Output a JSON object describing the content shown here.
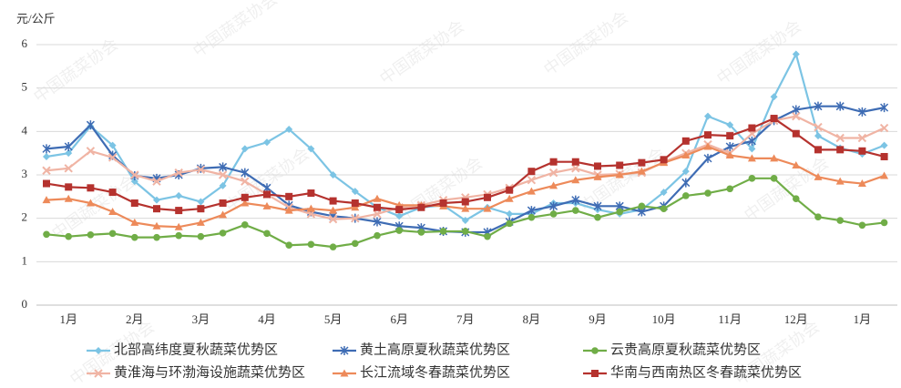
{
  "chart_data": {
    "type": "line",
    "y_label": "元/公斤",
    "watermark": "中国蔬菜协会",
    "categories": [
      null,
      "1月",
      null,
      null,
      "2月",
      null,
      null,
      "3月",
      null,
      null,
      "4月",
      null,
      null,
      "5月",
      null,
      null,
      "6月",
      null,
      null,
      "7月",
      null,
      null,
      "8月",
      null,
      null,
      "9月",
      null,
      null,
      "10月",
      null,
      null,
      "11月",
      null,
      null,
      "12月",
      null,
      null,
      "1月",
      null
    ],
    "ylim": [
      0,
      6
    ],
    "yticks": [
      0,
      1,
      2,
      3,
      4,
      5,
      6
    ],
    "grid": true,
    "legend": "bottom",
    "series": [
      {
        "name": "北部高纬度夏秋蔬菜优势区",
        "color": "#7cc4e4",
        "marker": "diamond",
        "values": [
          3.42,
          3.5,
          4.12,
          3.68,
          2.85,
          2.42,
          2.52,
          2.38,
          2.75,
          3.6,
          3.75,
          4.05,
          3.6,
          3.0,
          2.62,
          2.25,
          2.05,
          2.25,
          2.3,
          1.95,
          2.25,
          2.1,
          2.1,
          2.35,
          2.35,
          2.2,
          2.1,
          2.2,
          2.6,
          3.08,
          4.35,
          4.15,
          3.6,
          4.8,
          5.78,
          3.9,
          3.62,
          3.48,
          3.68
        ]
      },
      {
        "name": "黄土高原夏秋蔬菜优势区",
        "color": "#3e6cb4",
        "marker": "star",
        "values": [
          3.6,
          3.65,
          4.15,
          3.45,
          2.98,
          2.92,
          3.0,
          3.15,
          3.18,
          3.05,
          2.7,
          2.3,
          2.15,
          2.05,
          2.0,
          1.92,
          1.82,
          1.78,
          1.7,
          1.68,
          1.68,
          1.92,
          2.18,
          2.28,
          2.42,
          2.28,
          2.28,
          2.15,
          2.28,
          2.82,
          3.38,
          3.65,
          3.78,
          4.25,
          4.5,
          4.58,
          4.58,
          4.45,
          4.55
        ]
      },
      {
        "name": "云贵高原夏秋蔬菜优势区",
        "color": "#70ad47",
        "marker": "circle",
        "values": [
          1.63,
          1.58,
          1.62,
          1.65,
          1.56,
          1.56,
          1.6,
          1.58,
          1.66,
          1.85,
          1.65,
          1.38,
          1.4,
          1.34,
          1.42,
          1.6,
          1.72,
          1.68,
          1.7,
          1.7,
          1.58,
          1.88,
          2.02,
          2.1,
          2.18,
          2.02,
          2.15,
          2.28,
          2.22,
          2.52,
          2.58,
          2.68,
          2.92,
          2.92,
          2.45,
          2.03,
          1.95,
          1.84,
          1.9
        ]
      },
      {
        "name": "黄淮海与环渤海设施蔬菜优势区",
        "color": "#f0b4a4",
        "marker": "cross",
        "values": [
          3.1,
          3.15,
          3.55,
          3.4,
          3.0,
          2.85,
          3.05,
          3.12,
          3.0,
          2.85,
          2.55,
          2.25,
          2.1,
          1.98,
          2.0,
          2.1,
          2.25,
          2.3,
          2.42,
          2.48,
          2.55,
          2.7,
          2.88,
          3.05,
          3.15,
          3.0,
          3.02,
          3.05,
          3.3,
          3.5,
          3.7,
          3.5,
          3.95,
          4.25,
          4.35,
          4.1,
          3.85,
          3.85,
          4.08
        ]
      },
      {
        "name": "长江流域冬春蔬菜优势区",
        "color": "#ed8a5a",
        "marker": "triangle",
        "values": [
          2.42,
          2.45,
          2.35,
          2.15,
          1.9,
          1.82,
          1.8,
          1.9,
          2.08,
          2.35,
          2.28,
          2.18,
          2.22,
          2.18,
          2.25,
          2.45,
          2.3,
          2.3,
          2.28,
          2.22,
          2.22,
          2.45,
          2.62,
          2.75,
          2.88,
          2.95,
          3.0,
          3.08,
          3.28,
          3.45,
          3.65,
          3.45,
          3.38,
          3.38,
          3.22,
          2.95,
          2.85,
          2.8,
          2.98
        ]
      },
      {
        "name": "华南与西南热区冬春蔬菜优势区",
        "color": "#b5322e",
        "marker": "square",
        "values": [
          2.8,
          2.72,
          2.7,
          2.6,
          2.35,
          2.22,
          2.18,
          2.22,
          2.35,
          2.48,
          2.55,
          2.5,
          2.58,
          2.4,
          2.35,
          2.25,
          2.2,
          2.25,
          2.35,
          2.38,
          2.48,
          2.65,
          3.08,
          3.3,
          3.3,
          3.2,
          3.22,
          3.28,
          3.35,
          3.78,
          3.92,
          3.9,
          4.08,
          4.3,
          3.95,
          3.58,
          3.58,
          3.55,
          3.42
        ]
      }
    ]
  }
}
